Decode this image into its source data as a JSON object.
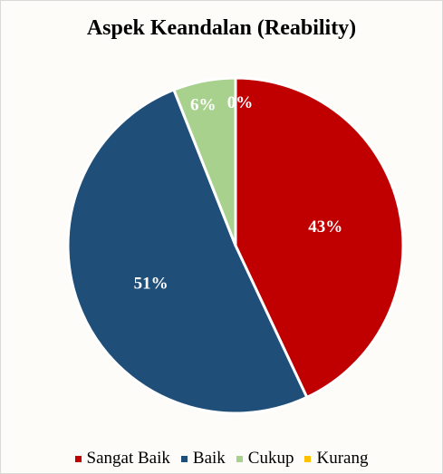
{
  "chart_data": {
    "type": "pie",
    "title": "Aspek Keandalan (Reability)",
    "categories": [
      "Sangat Baik",
      "Baik",
      "Cukup",
      "Kurang"
    ],
    "values": [
      43,
      51,
      6,
      0
    ],
    "labels": [
      "43%",
      "51%",
      "6%",
      "0%"
    ],
    "colors": [
      "#c00000",
      "#1f4e79",
      "#a9d18e",
      "#ffc000"
    ],
    "legend_position": "bottom",
    "start_angle_deg": 0,
    "direction": "clockwise"
  }
}
